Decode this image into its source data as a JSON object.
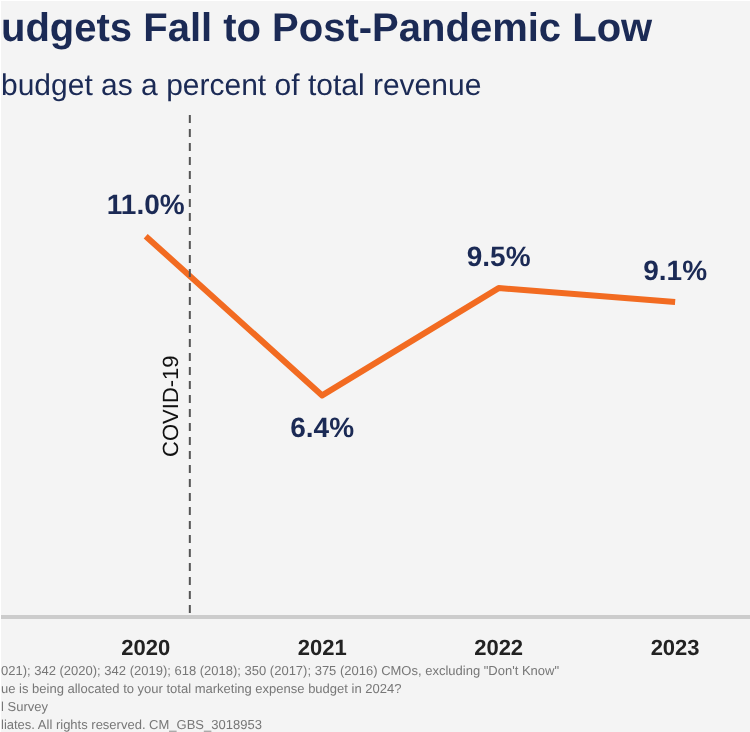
{
  "chart_data": {
    "type": "line",
    "title": "udgets Fall to Post-Pandemic Low",
    "subtitle": "budget as a percent of total revenue",
    "x": [
      2020,
      2021,
      2022,
      2023
    ],
    "series": [
      {
        "color": "#f26b21",
        "values": [
          11.0,
          6.4,
          9.5,
          9.1
        ],
        "value_labels": [
          "11.0%",
          "6.4%",
          "9.5%",
          "9.1%"
        ]
      }
    ],
    "xlim": [
      2019.18,
      2023.43
    ],
    "xticks": [
      2020,
      2021,
      2022,
      2023
    ],
    "ylim": [
      0,
      14.5
    ],
    "tick_labels": "x",
    "grid": false,
    "marker": "none",
    "line_style": "solid",
    "ref_lines": [
      {
        "axis": "x",
        "value": 2020.25,
        "label": "COVID-19",
        "color": "#555555",
        "line_style": "dashed"
      }
    ],
    "annotations": [
      "021); 342 (2020); 342 (2019); 618 (2018); 350 (2017); 375 (2016) CMOs, excluding \"Don't Know\"",
      "ue is being allocated to your total marketing expense budget in 2024?",
      "l Survey",
      "liates. All rights reserved. CM_GBS_3018953"
    ]
  }
}
